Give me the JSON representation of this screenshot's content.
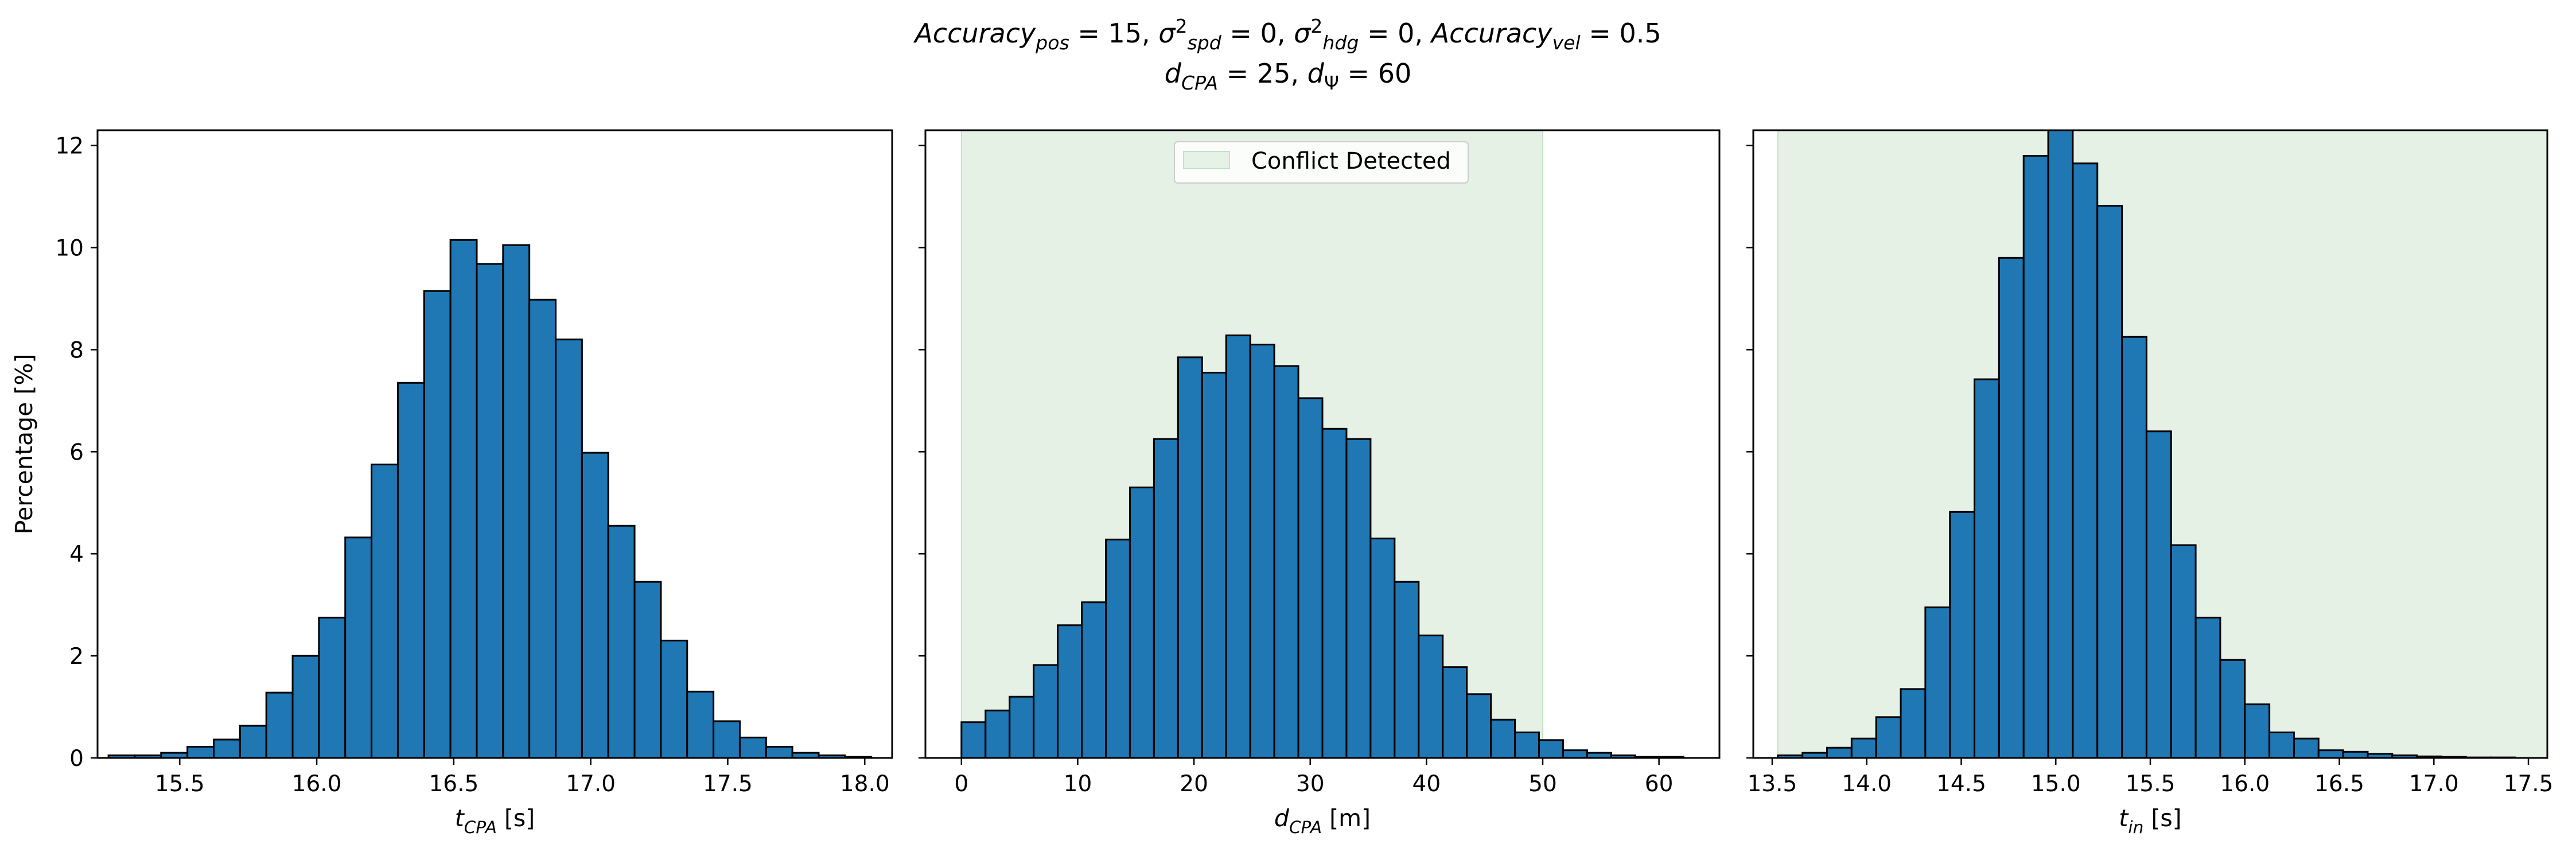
{
  "figure": {
    "title_line1": {
      "parts": [
        {
          "text": "Accuracy",
          "italic": true
        },
        {
          "text": "pos",
          "italic": true,
          "sub": true
        },
        {
          "text": " = 15, "
        },
        {
          "text": "σ",
          "italic": true
        },
        {
          "text": "2",
          "sup": true
        },
        {
          "text": "spd",
          "italic": true,
          "sub": true
        },
        {
          "text": " = 0, "
        },
        {
          "text": "σ",
          "italic": true
        },
        {
          "text": "2",
          "sup": true
        },
        {
          "text": "hdg",
          "italic": true,
          "sub": true
        },
        {
          "text": " = 0, "
        },
        {
          "text": "Accuracy",
          "italic": true
        },
        {
          "text": "vel",
          "italic": true,
          "sub": true
        },
        {
          "text": " = 0.5"
        }
      ]
    },
    "title_line2": {
      "parts": [
        {
          "text": "d",
          "italic": true
        },
        {
          "text": "CPA",
          "italic": true,
          "sub": true
        },
        {
          "text": " = 25, "
        },
        {
          "text": "d",
          "italic": true
        },
        {
          "text": "Ψ",
          "sub": true
        },
        {
          "text": " = 60"
        }
      ]
    },
    "colors": {
      "bar_fill": "#1f77b4",
      "bar_edge": "#000000",
      "conflict_fill": "#e5f1e5",
      "conflict_edge": "#c6e0c6"
    },
    "legend": {
      "label": "Conflict Detected",
      "placement": "upper center (middle panel)"
    }
  },
  "chart_data": [
    {
      "type": "bar",
      "subtype": "histogram",
      "xlabel": {
        "parts": [
          {
            "text": "t",
            "italic": true
          },
          {
            "text": "CPA",
            "italic": true,
            "sub": true
          },
          {
            "text": " [s]"
          }
        ]
      },
      "ylabel": "Percentage [%]",
      "xlim": [
        15.2,
        18.1
      ],
      "ylim": [
        0,
        12.3
      ],
      "xticks": [
        15.5,
        16.0,
        16.5,
        17.0,
        17.5,
        18.0
      ],
      "xtick_labels": [
        "15.5",
        "16.0",
        "16.5",
        "17.0",
        "17.5",
        "18.0"
      ],
      "yticks": [
        0,
        2,
        4,
        6,
        8,
        10,
        12
      ],
      "ytick_labels": [
        "0",
        "2",
        "4",
        "6",
        "8",
        "10",
        "12"
      ],
      "bin_edges": [
        15.24,
        15.336,
        15.432,
        15.528,
        15.624,
        15.72,
        15.816,
        15.912,
        16.008,
        16.104,
        16.2,
        16.296,
        16.392,
        16.488,
        16.584,
        16.68,
        16.776,
        16.872,
        16.968,
        17.064,
        17.16,
        17.256,
        17.352,
        17.448,
        17.544,
        17.64,
        17.736,
        17.832,
        17.928,
        18.024
      ],
      "values": [
        0.05,
        0.05,
        0.1,
        0.22,
        0.36,
        0.63,
        1.28,
        2.0,
        2.75,
        4.32,
        5.75,
        7.35,
        9.15,
        10.15,
        9.68,
        10.05,
        8.98,
        8.2,
        5.98,
        4.55,
        3.45,
        2.3,
        1.3,
        0.72,
        0.4,
        0.22,
        0.1,
        0.05,
        0.02
      ],
      "grid": false
    },
    {
      "type": "bar",
      "subtype": "histogram",
      "xlabel": {
        "parts": [
          {
            "text": "d",
            "italic": true
          },
          {
            "text": "CPA",
            "italic": true,
            "sub": true
          },
          {
            "text": " [m]"
          }
        ]
      },
      "xlim": [
        -3.1,
        65.2
      ],
      "ylim": [
        0,
        12.3
      ],
      "xticks": [
        0,
        10,
        20,
        30,
        40,
        50,
        60
      ],
      "xtick_labels": [
        "0",
        "10",
        "20",
        "30",
        "40",
        "50",
        "60"
      ],
      "yticks": [
        0,
        2,
        4,
        6,
        8,
        10,
        12
      ],
      "conflict_region": [
        0,
        50
      ],
      "bin_edges": [
        0.0,
        2.07,
        4.14,
        6.21,
        8.28,
        10.35,
        12.42,
        14.49,
        16.56,
        18.63,
        20.7,
        22.77,
        24.84,
        26.91,
        28.98,
        31.05,
        33.12,
        35.19,
        37.26,
        39.33,
        41.4,
        43.47,
        45.54,
        47.61,
        49.68,
        51.75,
        53.82,
        55.89,
        57.96,
        60.03,
        62.1
      ],
      "values": [
        0.7,
        0.93,
        1.2,
        1.82,
        2.6,
        3.05,
        4.28,
        5.3,
        6.25,
        7.85,
        7.55,
        8.28,
        8.1,
        7.68,
        7.05,
        6.45,
        6.25,
        4.3,
        3.45,
        2.4,
        1.78,
        1.25,
        0.75,
        0.5,
        0.35,
        0.15,
        0.1,
        0.05,
        0.02,
        0.02
      ],
      "grid": false
    },
    {
      "type": "bar",
      "subtype": "histogram",
      "xlabel": {
        "parts": [
          {
            "text": "t",
            "italic": true
          },
          {
            "text": "in",
            "italic": true,
            "sub": true
          },
          {
            "text": " [s]"
          }
        ]
      },
      "xlim": [
        13.4,
        17.6
      ],
      "ylim": [
        0,
        12.3
      ],
      "xticks": [
        13.5,
        14.0,
        14.5,
        15.0,
        15.5,
        16.0,
        16.5,
        17.0,
        17.5
      ],
      "xtick_labels": [
        "13.5",
        "14.0",
        "14.5",
        "15.0",
        "15.5",
        "16.0",
        "16.5",
        "17.0",
        "17.5"
      ],
      "yticks": [
        0,
        2,
        4,
        6,
        8,
        10,
        12
      ],
      "conflict_region": [
        13.53,
        17.6
      ],
      "bin_edges": [
        13.53,
        13.66,
        13.79,
        13.92,
        14.05,
        14.18,
        14.31,
        14.44,
        14.57,
        14.7,
        14.83,
        14.96,
        15.09,
        15.22,
        15.35,
        15.48,
        15.61,
        15.74,
        15.87,
        16.0,
        16.13,
        16.26,
        16.39,
        16.52,
        16.65,
        16.78,
        16.91,
        17.04,
        17.17,
        17.3,
        17.43
      ],
      "values": [
        0.05,
        0.1,
        0.2,
        0.38,
        0.8,
        1.35,
        2.95,
        4.82,
        7.42,
        9.8,
        11.8,
        12.3,
        11.65,
        10.82,
        8.25,
        6.4,
        4.17,
        2.75,
        1.92,
        1.05,
        0.5,
        0.38,
        0.15,
        0.12,
        0.08,
        0.05,
        0.03,
        0.02,
        0.01,
        0.01
      ],
      "grid": false
    }
  ]
}
